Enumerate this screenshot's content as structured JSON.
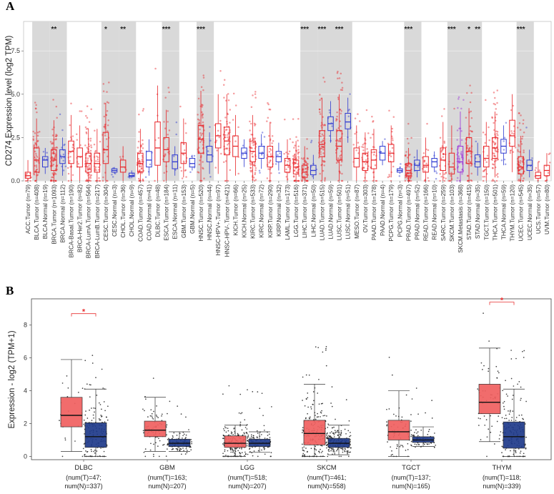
{
  "chart_data": [
    {
      "panel": "A",
      "type": "box",
      "ylabel": "CD274 Expression level (log2 TPM)",
      "ylim": [
        0,
        9.2
      ],
      "yticks": [
        0.0,
        2.5,
        5.0,
        7.5
      ],
      "ytick_labels": [
        "0.0",
        "2.5",
        "5.0",
        "7.5"
      ],
      "categories": [
        {
          "label": "ACC.Tumor (n=79)",
          "kind": "tumor",
          "median": 0.3,
          "q1": 0.15,
          "q3": 0.5,
          "lo": 0.0,
          "hi": 1.2,
          "sig": ""
        },
        {
          "label": "BLCA.Tumor (n=408)",
          "kind": "tumor",
          "median": 1.2,
          "q1": 0.5,
          "q3": 1.9,
          "lo": 0.0,
          "hi": 3.6,
          "sig": ""
        },
        {
          "label": "BLCA.Normal (n=19)",
          "kind": "normal",
          "median": 1.2,
          "q1": 0.8,
          "q3": 1.4,
          "lo": 0.4,
          "hi": 1.9,
          "sig": ""
        },
        {
          "label": "BRCA.Tumor (n=1093)",
          "kind": "tumor",
          "median": 1.2,
          "q1": 0.6,
          "q3": 1.8,
          "lo": 0.0,
          "hi": 3.5,
          "sig": "**"
        },
        {
          "label": "BRCA.Normal (n=112)",
          "kind": "normal",
          "median": 1.4,
          "q1": 1.0,
          "q3": 1.8,
          "lo": 0.3,
          "hi": 2.5,
          "sig": ""
        },
        {
          "label": "BRCA-Basal.Tumor (n=190)",
          "kind": "tumor",
          "median": 1.7,
          "q1": 1.0,
          "q3": 2.3,
          "lo": 0.0,
          "hi": 3.8,
          "sig": ""
        },
        {
          "label": "BRCA-Her2.Tumor (n=82)",
          "kind": "tumor",
          "median": 1.4,
          "q1": 0.8,
          "q3": 1.9,
          "lo": 0.0,
          "hi": 3.2,
          "sig": ""
        },
        {
          "label": "BRCA-LumA.Tumor (n=564)",
          "kind": "tumor",
          "median": 1.0,
          "q1": 0.5,
          "q3": 1.6,
          "lo": 0.0,
          "hi": 3.0,
          "sig": ""
        },
        {
          "label": "BRCA-LumB.Tumor (n=217)",
          "kind": "tumor",
          "median": 1.0,
          "q1": 0.5,
          "q3": 1.6,
          "lo": 0.0,
          "hi": 3.0,
          "sig": ""
        },
        {
          "label": "CESC.Tumor (n=304)",
          "kind": "tumor",
          "median": 1.8,
          "q1": 1.0,
          "q3": 2.8,
          "lo": 0.0,
          "hi": 4.5,
          "sig": "*"
        },
        {
          "label": "CESC.Normal (n=3)",
          "kind": "normal",
          "median": 0.6,
          "q1": 0.5,
          "q3": 0.7,
          "lo": 0.4,
          "hi": 0.8,
          "sig": ""
        },
        {
          "label": "CHOL.Tumor (n=36)",
          "kind": "tumor",
          "median": 0.8,
          "q1": 0.5,
          "q3": 1.2,
          "lo": 0.0,
          "hi": 2.0,
          "sig": "**"
        },
        {
          "label": "CHOL.Normal (n=9)",
          "kind": "normal",
          "median": 0.3,
          "q1": 0.25,
          "q3": 0.45,
          "lo": 0.15,
          "hi": 0.6,
          "sig": ""
        },
        {
          "label": "COAD.Tumor (n=457)",
          "kind": "tumor",
          "median": 1.0,
          "q1": 0.5,
          "q3": 1.6,
          "lo": 0.0,
          "hi": 3.0,
          "sig": ""
        },
        {
          "label": "COAD.Normal (n=41)",
          "kind": "normal",
          "median": 1.2,
          "q1": 0.8,
          "q3": 1.7,
          "lo": 0.3,
          "hi": 2.4,
          "sig": ""
        },
        {
          "label": "DLBC.Tumor (n=48)",
          "kind": "tumor",
          "median": 1.9,
          "q1": 0.9,
          "q3": 3.4,
          "lo": 0.0,
          "hi": 5.5,
          "sig": ""
        },
        {
          "label": "ESCA.Tumor (n=184)",
          "kind": "tumor",
          "median": 1.8,
          "q1": 1.1,
          "q3": 2.5,
          "lo": 0.0,
          "hi": 4.1,
          "sig": "***"
        },
        {
          "label": "ESCA.Normal (n=11)",
          "kind": "normal",
          "median": 1.1,
          "q1": 0.7,
          "q3": 1.5,
          "lo": 0.3,
          "hi": 2.0,
          "sig": ""
        },
        {
          "label": "GBM.Tumor (n=153)",
          "kind": "tumor",
          "median": 1.6,
          "q1": 1.0,
          "q3": 2.2,
          "lo": 0.2,
          "hi": 3.6,
          "sig": ""
        },
        {
          "label": "GBM.Normal (n=5)",
          "kind": "normal",
          "median": 1.0,
          "q1": 0.8,
          "q3": 1.3,
          "lo": 0.6,
          "hi": 1.5,
          "sig": ""
        },
        {
          "label": "HNSC.Tumor (n=520)",
          "kind": "tumor",
          "median": 2.4,
          "q1": 1.6,
          "q3": 3.2,
          "lo": 0.0,
          "hi": 5.2,
          "sig": "***"
        },
        {
          "label": "HNSC.Normal (n=44)",
          "kind": "normal",
          "median": 1.5,
          "q1": 1.1,
          "q3": 2.0,
          "lo": 0.4,
          "hi": 2.8,
          "sig": ""
        },
        {
          "label": "HNSC-HPV+.Tumor (n=97)",
          "kind": "tumor",
          "median": 2.6,
          "q1": 1.9,
          "q3": 3.3,
          "lo": 0.4,
          "hi": 5.0,
          "sig": ""
        },
        {
          "label": "HNSC-HPV-.Tumor (n=421)",
          "kind": "tumor",
          "median": 2.3,
          "q1": 1.5,
          "q3": 3.1,
          "lo": 0.0,
          "hi": 5.0,
          "sig": ""
        },
        {
          "label": "KICH.Tumor (n=66)",
          "kind": "tumor",
          "median": 2.0,
          "q1": 1.4,
          "q3": 2.6,
          "lo": 0.3,
          "hi": 3.8,
          "sig": ""
        },
        {
          "label": "KICH.Normal (n=25)",
          "kind": "normal",
          "median": 1.6,
          "q1": 1.3,
          "q3": 1.9,
          "lo": 0.8,
          "hi": 2.4,
          "sig": ""
        },
        {
          "label": "KIRC.Tumor (n=533)",
          "kind": "tumor",
          "median": 1.7,
          "q1": 1.1,
          "q3": 2.3,
          "lo": 0.0,
          "hi": 3.8,
          "sig": ""
        },
        {
          "label": "KIRC.Normal (n=72)",
          "kind": "normal",
          "median": 1.6,
          "q1": 1.3,
          "q3": 2.0,
          "lo": 0.7,
          "hi": 2.7,
          "sig": ""
        },
        {
          "label": "KIRP.Tumor (n=290)",
          "kind": "tumor",
          "median": 1.4,
          "q1": 0.8,
          "q3": 2.0,
          "lo": 0.0,
          "hi": 3.4,
          "sig": ""
        },
        {
          "label": "KIRP.Normal (n=32)",
          "kind": "normal",
          "median": 1.4,
          "q1": 1.1,
          "q3": 1.7,
          "lo": 0.6,
          "hi": 2.2,
          "sig": ""
        },
        {
          "label": "LAML.Tumor (n=173)",
          "kind": "tumor",
          "median": 0.9,
          "q1": 0.5,
          "q3": 1.3,
          "lo": 0.0,
          "hi": 2.4,
          "sig": ""
        },
        {
          "label": "LGG.Tumor (n=516)",
          "kind": "tumor",
          "median": 0.8,
          "q1": 0.4,
          "q3": 1.2,
          "lo": 0.0,
          "hi": 2.3,
          "sig": ""
        },
        {
          "label": "LIHC.Tumor (n=371)",
          "kind": "tumor",
          "median": 0.5,
          "q1": 0.2,
          "q3": 0.9,
          "lo": 0.0,
          "hi": 2.0,
          "sig": "***"
        },
        {
          "label": "LIHC.Normal (n=50)",
          "kind": "normal",
          "median": 0.6,
          "q1": 0.35,
          "q3": 0.9,
          "lo": 0.1,
          "hi": 1.5,
          "sig": ""
        },
        {
          "label": "LUAD.Tumor (n=515)",
          "kind": "tumor",
          "median": 2.1,
          "q1": 1.4,
          "q3": 2.9,
          "lo": 0.0,
          "hi": 4.8,
          "sig": "***"
        },
        {
          "label": "LUAD.Normal (n=59)",
          "kind": "normal",
          "median": 3.3,
          "q1": 2.9,
          "q3": 3.7,
          "lo": 2.2,
          "hi": 4.6,
          "sig": ""
        },
        {
          "label": "LUSC.Tumor (n=501)",
          "kind": "tumor",
          "median": 2.0,
          "q1": 1.2,
          "q3": 2.9,
          "lo": 0.0,
          "hi": 5.0,
          "sig": "***"
        },
        {
          "label": "LUSC.Normal (n=51)",
          "kind": "normal",
          "median": 3.4,
          "q1": 3.0,
          "q3": 3.9,
          "lo": 2.2,
          "hi": 4.8,
          "sig": ""
        },
        {
          "label": "MESO.Tumor (n=87)",
          "kind": "tumor",
          "median": 1.3,
          "q1": 0.8,
          "q3": 1.9,
          "lo": 0.0,
          "hi": 3.2,
          "sig": ""
        },
        {
          "label": "OV.Tumor (n=303)",
          "kind": "tumor",
          "median": 1.1,
          "q1": 0.6,
          "q3": 1.6,
          "lo": 0.0,
          "hi": 2.8,
          "sig": ""
        },
        {
          "label": "PAAD.Tumor (n=178)",
          "kind": "tumor",
          "median": 1.2,
          "q1": 0.7,
          "q3": 1.8,
          "lo": 0.0,
          "hi": 3.0,
          "sig": ""
        },
        {
          "label": "PAAD.Normal (n=4)",
          "kind": "normal",
          "median": 1.6,
          "q1": 1.2,
          "q3": 2.0,
          "lo": 0.9,
          "hi": 2.3,
          "sig": ""
        },
        {
          "label": "PCPG.Tumor (n=179)",
          "kind": "tumor",
          "median": 1.6,
          "q1": 1.1,
          "q3": 2.1,
          "lo": 0.2,
          "hi": 3.2,
          "sig": ""
        },
        {
          "label": "PCPG.Normal (n=3)",
          "kind": "normal",
          "median": 0.6,
          "q1": 0.5,
          "q3": 0.7,
          "lo": 0.4,
          "hi": 0.8,
          "sig": ""
        },
        {
          "label": "PRAD.Tumor (n=497)",
          "kind": "tumor",
          "median": 0.6,
          "q1": 0.3,
          "q3": 1.0,
          "lo": 0.0,
          "hi": 1.9,
          "sig": "***"
        },
        {
          "label": "PRAD.Normal (n=52)",
          "kind": "normal",
          "median": 0.9,
          "q1": 0.6,
          "q3": 1.2,
          "lo": 0.2,
          "hi": 1.8,
          "sig": ""
        },
        {
          "label": "READ.Tumor (n=166)",
          "kind": "tumor",
          "median": 0.9,
          "q1": 0.5,
          "q3": 1.4,
          "lo": 0.0,
          "hi": 2.5,
          "sig": ""
        },
        {
          "label": "READ.Normal (n=10)",
          "kind": "normal",
          "median": 1.1,
          "q1": 0.8,
          "q3": 1.3,
          "lo": 0.5,
          "hi": 1.7,
          "sig": ""
        },
        {
          "label": "SARC.Tumor (n=259)",
          "kind": "tumor",
          "median": 1.2,
          "q1": 0.6,
          "q3": 1.9,
          "lo": 0.0,
          "hi": 3.4,
          "sig": ""
        },
        {
          "label": "SKCM.Tumor (n=103)",
          "kind": "tumor",
          "median": 0.8,
          "q1": 0.4,
          "q3": 1.6,
          "lo": 0.0,
          "hi": 3.2,
          "sig": "***"
        },
        {
          "label": "SKCM.Metastasis (n=368)",
          "kind": "metastasis",
          "median": 1.1,
          "q1": 0.5,
          "q3": 2.0,
          "lo": 0.0,
          "hi": 4.0,
          "sig": ""
        },
        {
          "label": "STAD.Tumor (n=415)",
          "kind": "tumor",
          "median": 1.7,
          "q1": 1.0,
          "q3": 2.5,
          "lo": 0.0,
          "hi": 4.2,
          "sig": "*"
        },
        {
          "label": "STAD.Normal (n=35)",
          "kind": "normal",
          "median": 1.1,
          "q1": 0.8,
          "q3": 1.5,
          "lo": 0.3,
          "hi": 2.2,
          "sig": "**"
        },
        {
          "label": "TGCT.Tumor (n=150)",
          "kind": "tumor",
          "median": 1.3,
          "q1": 0.8,
          "q3": 2.0,
          "lo": 0.0,
          "hi": 3.4,
          "sig": ""
        },
        {
          "label": "THCA.Tumor (n=501)",
          "kind": "tumor",
          "median": 1.9,
          "q1": 1.3,
          "q3": 2.5,
          "lo": 0.2,
          "hi": 4.0,
          "sig": ""
        },
        {
          "label": "THCA.Normal (n=59)",
          "kind": "normal",
          "median": 2.0,
          "q1": 1.6,
          "q3": 2.4,
          "lo": 0.9,
          "hi": 3.2,
          "sig": ""
        },
        {
          "label": "THYM.Tumor (n=120)",
          "kind": "tumor",
          "median": 2.6,
          "q1": 2.0,
          "q3": 3.5,
          "lo": 0.5,
          "hi": 5.0,
          "sig": ""
        },
        {
          "label": "UCEC.Tumor (n=545)",
          "kind": "tumor",
          "median": 0.8,
          "q1": 0.4,
          "q3": 1.4,
          "lo": 0.0,
          "hi": 2.6,
          "sig": "***"
        },
        {
          "label": "UCEC.Normal (n=35)",
          "kind": "normal",
          "median": 0.9,
          "q1": 0.6,
          "q3": 1.2,
          "lo": 0.2,
          "hi": 1.8,
          "sig": ""
        },
        {
          "label": "UCS.Tumor (n=57)",
          "kind": "tumor",
          "median": 0.3,
          "q1": 0.15,
          "q3": 0.5,
          "lo": 0.0,
          "hi": 1.1,
          "sig": ""
        },
        {
          "label": "UVM.Tumor (n=80)",
          "kind": "tumor",
          "median": 0.6,
          "q1": 0.3,
          "q3": 0.9,
          "lo": 0.0,
          "hi": 1.6,
          "sig": ""
        }
      ],
      "shaded_groups": [
        [
          1,
          2
        ],
        [
          3,
          4
        ],
        [
          9,
          10
        ],
        [
          11,
          12
        ],
        [
          16,
          17
        ],
        [
          20,
          21
        ],
        [
          32,
          33
        ],
        [
          34,
          35
        ],
        [
          36,
          37
        ],
        [
          44,
          45
        ],
        [
          49,
          50
        ],
        [
          51,
          52
        ],
        [
          57,
          58
        ]
      ],
      "colors": {
        "tumor": "#e8262a",
        "normal": "#2f3ad1",
        "metastasis": "#9b30d9",
        "shade": "#d9d9d9"
      }
    },
    {
      "panel": "B",
      "type": "box",
      "ylabel": "Expression - log2 (TPM+1)",
      "ylim": [
        -0.2,
        9.6
      ],
      "yticks": [
        0,
        2,
        4,
        6,
        8
      ],
      "ytick_labels": [
        "0",
        "2",
        "4",
        "6",
        "8"
      ],
      "groups": [
        {
          "name": "DLBC",
          "count": "(num(T)=47;",
          "count2": "num(N)=337)",
          "sig": "*",
          "tumor": {
            "median": 2.5,
            "q1": 1.8,
            "q3": 3.6,
            "lo": 0.3,
            "hi": 5.9
          },
          "normal": {
            "median": 1.2,
            "q1": 0.55,
            "q3": 2.05,
            "lo": 0.0,
            "hi": 4.1
          }
        },
        {
          "name": "GBM",
          "count": "(num(T)=163;",
          "count2": "num(N)=207)",
          "sig": "",
          "tumor": {
            "median": 1.6,
            "q1": 1.2,
            "q3": 2.15,
            "lo": 0.3,
            "hi": 3.6
          },
          "normal": {
            "median": 0.8,
            "q1": 0.6,
            "q3": 1.05,
            "lo": 0.3,
            "hi": 1.5
          }
        },
        {
          "name": "LGG",
          "count": "(num(T)=518;",
          "count2": "num(N)=207)",
          "sig": "",
          "tumor": {
            "median": 0.8,
            "q1": 0.55,
            "q3": 1.25,
            "lo": 0.0,
            "hi": 1.9
          },
          "normal": {
            "median": 0.8,
            "q1": 0.6,
            "q3": 1.05,
            "lo": 0.25,
            "hi": 1.5
          }
        },
        {
          "name": "SKCM",
          "count": "(num(T)=461;",
          "count2": "num(N)=558)",
          "sig": "",
          "tumor": {
            "median": 1.4,
            "q1": 0.7,
            "q3": 2.2,
            "lo": 0.0,
            "hi": 4.4
          },
          "normal": {
            "median": 0.8,
            "q1": 0.55,
            "q3": 1.1,
            "lo": 0.1,
            "hi": 1.9
          }
        },
        {
          "name": "TGCT",
          "count": "(num(T)=137;",
          "count2": "num(N)=165)",
          "sig": "",
          "tumor": {
            "median": 1.5,
            "q1": 1.0,
            "q3": 2.2,
            "lo": 0.0,
            "hi": 4.0
          },
          "normal": {
            "median": 1.0,
            "q1": 0.85,
            "q3": 1.2,
            "lo": 0.6,
            "hi": 1.8
          }
        },
        {
          "name": "THYM",
          "count": "(num(T)=118;",
          "count2": "num(N)=339)",
          "sig": "*",
          "tumor": {
            "median": 3.3,
            "q1": 2.6,
            "q3": 4.4,
            "lo": 0.9,
            "hi": 6.6
          },
          "normal": {
            "median": 1.2,
            "q1": 0.5,
            "q3": 2.1,
            "lo": 0.0,
            "hi": 4.1
          }
        }
      ],
      "colors": {
        "tumor": "#f06060",
        "normal": "#1f3a8a",
        "bracket": "#e83030"
      }
    }
  ]
}
